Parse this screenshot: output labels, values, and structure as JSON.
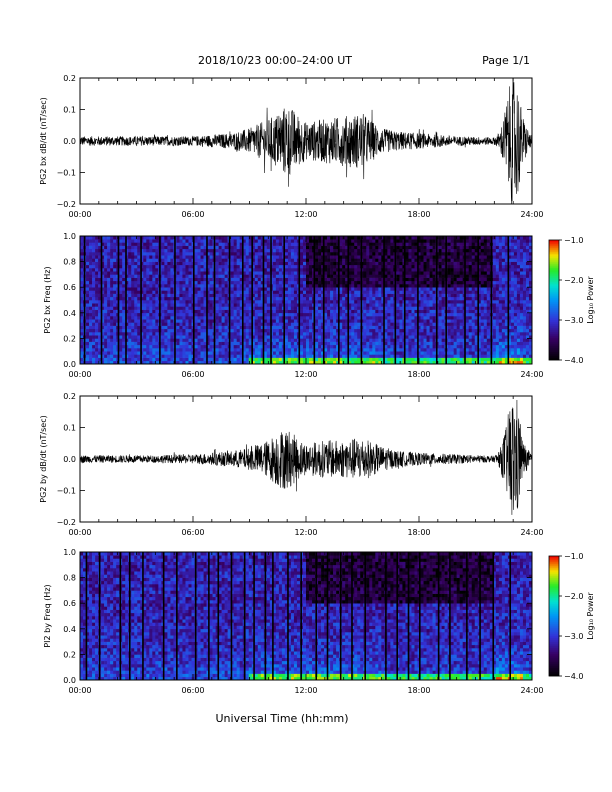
{
  "header": {
    "title": "2018/10/23  00:00–24:00 UT",
    "page": "Page 1/1"
  },
  "xlabel": "Universal Time (hh:mm)",
  "x_ticks": [
    "00:00",
    "06:00",
    "12:00",
    "18:00",
    "24:00"
  ],
  "chart_data": [
    {
      "type": "line",
      "name": "PG2 bx dB/dt",
      "ylabel": "PG2 bx dB/dt (nT/sec)",
      "xlim": [
        0,
        24
      ],
      "ylim": [
        -0.2,
        0.2
      ],
      "y_ticks": [
        "0.2",
        "0.1",
        "0.0",
        "−0.1",
        "−0.2"
      ],
      "envelope": {
        "hours": [
          0,
          2,
          4,
          6,
          8,
          9,
          10,
          10.5,
          11,
          11.5,
          12,
          13,
          14,
          15,
          16,
          17,
          18,
          20,
          22,
          22.3,
          22.6,
          22.9,
          23.2,
          23.5,
          24
        ],
        "amplitude": [
          0.015,
          0.015,
          0.015,
          0.015,
          0.025,
          0.04,
          0.07,
          0.09,
          0.12,
          0.09,
          0.06,
          0.07,
          0.08,
          0.09,
          0.04,
          0.03,
          0.025,
          0.015,
          0.012,
          0.03,
          0.11,
          0.2,
          0.2,
          0.08,
          0.01
        ]
      }
    },
    {
      "type": "heatmap",
      "name": "PG2 bx Freq",
      "ylabel": "PG2 bx Freq (Hz)",
      "xlim": [
        0,
        24
      ],
      "ylim": [
        0,
        1
      ],
      "y_ticks": [
        "1.0",
        "0.8",
        "0.6",
        "0.4",
        "0.2",
        "0.0"
      ],
      "colorbar": {
        "label": "Log₁₀ Power",
        "range": [
          -4,
          -1
        ],
        "ticks": [
          "−1.0",
          "−2.0",
          "−3.0",
          "−4.0"
        ]
      },
      "gap_hours": [
        0.2,
        1.1,
        2.0,
        2.4,
        3.2,
        4.2,
        5.0,
        6.0,
        6.7,
        7.1,
        7.9,
        8.6,
        9.1,
        9.7,
        10.1,
        10.8,
        11.6,
        12.4,
        12.9,
        13.7,
        14.2,
        14.9,
        16.1,
        16.7,
        17.2,
        17.9,
        18.9,
        19.4,
        20.4,
        21.1,
        21.8,
        22.7
      ]
    },
    {
      "type": "line",
      "name": "PG2 by dB/dt",
      "ylabel": "PG2 by dB/dt (nT/sec)",
      "xlim": [
        0,
        24
      ],
      "ylim": [
        -0.2,
        0.2
      ],
      "y_ticks": [
        "0.2",
        "0.1",
        "0.0",
        "−0.1",
        "−0.2"
      ],
      "envelope": {
        "hours": [
          0,
          2,
          4,
          6,
          8,
          9,
          10,
          10.5,
          11,
          11.5,
          12,
          13,
          14,
          15,
          16,
          17,
          18,
          20,
          22,
          22.3,
          22.6,
          22.9,
          23.2,
          23.5,
          24
        ],
        "amplitude": [
          0.012,
          0.012,
          0.012,
          0.015,
          0.025,
          0.035,
          0.06,
          0.09,
          0.1,
          0.07,
          0.05,
          0.06,
          0.06,
          0.07,
          0.04,
          0.025,
          0.02,
          0.015,
          0.01,
          0.03,
          0.1,
          0.2,
          0.2,
          0.06,
          0.01
        ]
      }
    },
    {
      "type": "heatmap",
      "name": "PI2 by Freq",
      "ylabel": "PI2 by Freq (Hz)",
      "xlim": [
        0,
        24
      ],
      "ylim": [
        0,
        1
      ],
      "y_ticks": [
        "1.0",
        "0.8",
        "0.6",
        "0.4",
        "0.2",
        "0.0"
      ],
      "colorbar": {
        "label": "Log₁₀ Power",
        "range": [
          -4,
          -1
        ],
        "ticks": [
          "−1.0",
          "−2.0",
          "−3.0",
          "−4.0"
        ]
      },
      "gap_hours": [
        0.3,
        1.0,
        2.1,
        2.6,
        3.3,
        4.4,
        5.1,
        6.1,
        6.8,
        7.3,
        8.0,
        8.7,
        9.2,
        9.8,
        10.2,
        11.0,
        11.7,
        12.5,
        13.1,
        13.8,
        14.4,
        15.1,
        16.2,
        16.8,
        17.4,
        18.0,
        19.0,
        19.6,
        20.5,
        21.2,
        21.9,
        22.8
      ]
    }
  ]
}
